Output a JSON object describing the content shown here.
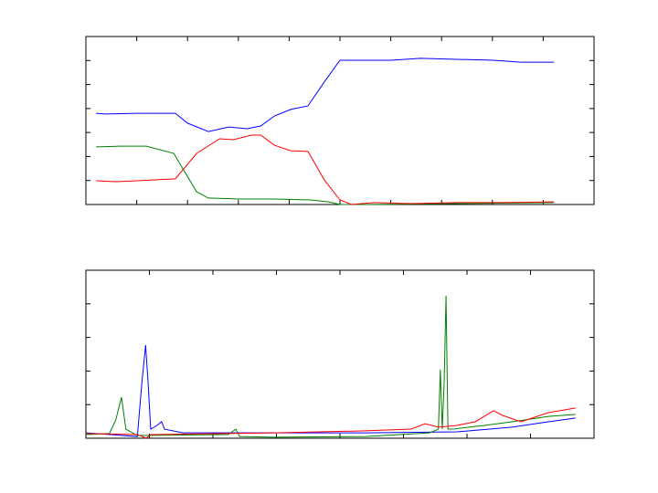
{
  "chart_data": [
    {
      "type": "line",
      "xlim": [
        0,
        10
      ],
      "ylim": [
        0,
        7
      ],
      "xticks": [
        1,
        2,
        3,
        4,
        5,
        6,
        7,
        8,
        9
      ],
      "yticks": [
        1,
        2,
        3,
        4,
        5,
        6
      ],
      "series": [
        {
          "color": "#0000ff",
          "x": [
            0.2,
            0.38,
            1.0,
            1.76,
            2.0,
            2.41,
            2.81,
            3.17,
            3.44,
            3.71,
            4.03,
            4.37,
            4.69,
            5.0,
            6.01,
            6.58,
            8.02,
            8.56,
            9.21
          ],
          "values": [
            3.8,
            3.77,
            3.8,
            3.8,
            3.39,
            3.04,
            3.23,
            3.16,
            3.27,
            3.69,
            3.96,
            4.11,
            5.1,
            6.01,
            6.01,
            6.09,
            6.01,
            5.93,
            5.93
          ]
        },
        {
          "color": "#008000",
          "x": [
            0.2,
            0.65,
            1.19,
            1.73,
            1.91,
            2.18,
            2.41,
            2.99,
            3.71,
            4.42,
            4.78,
            5.0,
            5.5,
            9.21
          ],
          "values": [
            2.4,
            2.43,
            2.43,
            2.13,
            1.48,
            0.53,
            0.27,
            0.23,
            0.23,
            0.19,
            0.11,
            0,
            0,
            0.08
          ]
        },
        {
          "color": "#ff0000",
          "x": [
            0.2,
            0.56,
            1.0,
            1.76,
            2.18,
            2.63,
            2.9,
            3.26,
            3.44,
            3.71,
            4.03,
            4.37,
            4.69,
            5.0,
            5.23,
            5.68,
            6.4,
            7.3,
            8.2,
            9.21
          ],
          "values": [
            0.99,
            0.95,
            0.99,
            1.07,
            2.13,
            2.74,
            2.7,
            2.89,
            2.89,
            2.47,
            2.24,
            2.21,
            1.03,
            0.19,
            0,
            0.08,
            0.04,
            0.08,
            0.08,
            0.11
          ]
        }
      ]
    },
    {
      "type": "line",
      "xlim": [
        0,
        8
      ],
      "ylim": [
        0,
        5
      ],
      "xticks": [
        1,
        2,
        3,
        4,
        5,
        6,
        7
      ],
      "yticks": [
        1,
        2,
        3,
        4
      ],
      "series": [
        {
          "color": "#0000ff",
          "x": [
            0,
            0.81,
            0.88,
            0.94,
            0.98,
            1.02,
            1.12,
            1.19,
            1.24,
            1.53,
            4.4,
            5.84,
            6.71,
            7.28,
            7.71
          ],
          "values": [
            0.16,
            0.05,
            1.63,
            2.77,
            1.63,
            0.27,
            0.38,
            0.49,
            0.27,
            0.16,
            0.16,
            0.19,
            0.33,
            0.49,
            0.6
          ]
        },
        {
          "color": "#008000",
          "x": [
            0,
            0.37,
            0.47,
            0.56,
            0.63,
            0.81,
            2.24,
            2.36,
            2.42,
            2.96,
            4.4,
            5.41,
            5.55,
            5.58,
            5.61,
            5.64,
            5.67,
            5.7,
            5.77,
            6.27,
            6.71,
            7.28,
            7.71
          ],
          "values": [
            0.11,
            0.14,
            0.54,
            1.22,
            0.27,
            0.08,
            0.11,
            0.27,
            0.05,
            0.03,
            0.05,
            0.16,
            0.27,
            2.04,
            0.27,
            1.63,
            4.24,
            0.27,
            0.27,
            0.38,
            0.49,
            0.65,
            0.71
          ]
        },
        {
          "color": "#ff0000",
          "x": [
            0,
            0.81,
            0.95,
            1.02,
            2.96,
            4.4,
            5.12,
            5.34,
            5.55,
            5.84,
            6.13,
            6.42,
            6.56,
            6.85,
            7.28,
            7.71
          ],
          "values": [
            0.14,
            0.11,
            0,
            0.11,
            0.16,
            0.22,
            0.27,
            0.43,
            0.33,
            0.38,
            0.49,
            0.82,
            0.68,
            0.49,
            0.76,
            0.9
          ]
        }
      ]
    }
  ]
}
